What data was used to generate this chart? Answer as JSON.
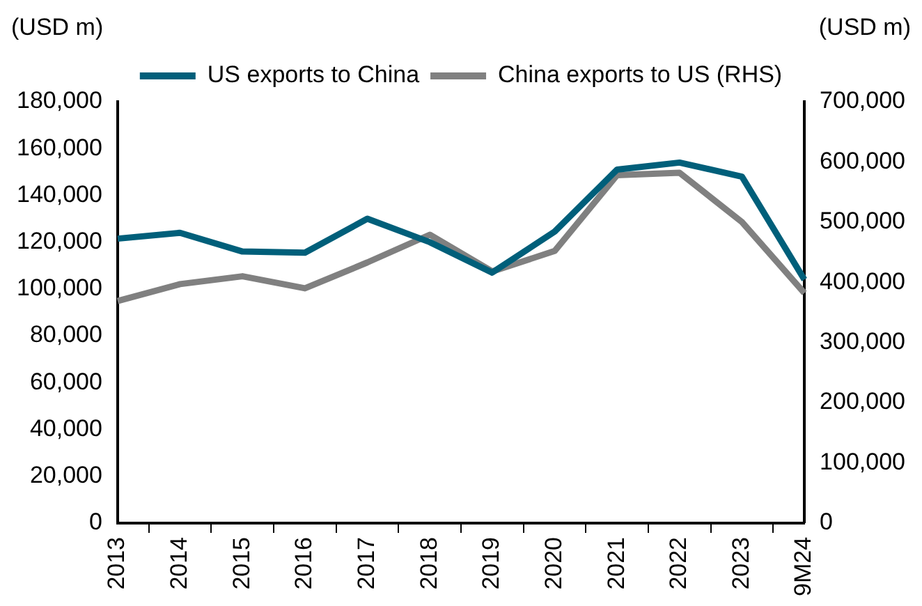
{
  "chart_data": {
    "type": "line",
    "ylabel": "(USD m)",
    "y2label": "(USD m)",
    "categories": [
      "2013",
      "2014",
      "2015",
      "2016",
      "2017",
      "2018",
      "2019",
      "2020",
      "2021",
      "2022",
      "2023",
      "9M24"
    ],
    "series": [
      {
        "name": "US exports to China",
        "color": "#005f7a",
        "values": [
          121500,
          124000,
          116000,
          115500,
          130000,
          120000,
          107000,
          124500,
          151000,
          154000,
          148000,
          104000
        ]
      },
      {
        "name": "China exports to US (RHS)",
        "color": "#808080",
        "axis": "y2",
        "values": [
          369000,
          397000,
          410000,
          390000,
          433000,
          479000,
          418000,
          452000,
          578000,
          582000,
          500000,
          382000
        ]
      }
    ],
    "ylim": [
      0,
      180000
    ],
    "yticks": [
      0,
      {
        "value": 20000,
        "label": "20,000"
      },
      {
        "value": 40000,
        "label": "40,000"
      },
      {
        "value": 60000,
        "label": "60,000"
      },
      {
        "value": 80000,
        "label": "80,000"
      },
      {
        "value": 100000,
        "label": "100,000"
      },
      {
        "value": 120000,
        "label": "120,000"
      },
      {
        "value": 140000,
        "label": "140,000"
      },
      {
        "value": 160000,
        "label": "160,000"
      },
      {
        "value": 180000,
        "label": "180,000"
      }
    ],
    "y2lim": [
      0,
      700000
    ],
    "y2ticks": [
      0,
      {
        "value": 100000,
        "label": "100,000"
      },
      {
        "value": 200000,
        "label": "200,000"
      },
      {
        "value": 300000,
        "label": "300,000"
      },
      {
        "value": 400000,
        "label": "400,000"
      },
      {
        "value": 500000,
        "label": "500,000"
      },
      {
        "value": 600000,
        "label": "600,000"
      },
      {
        "value": 700000,
        "label": "700,000"
      }
    ],
    "grid": false,
    "legend": "top",
    "marker": "none",
    "line_style": "solid"
  }
}
